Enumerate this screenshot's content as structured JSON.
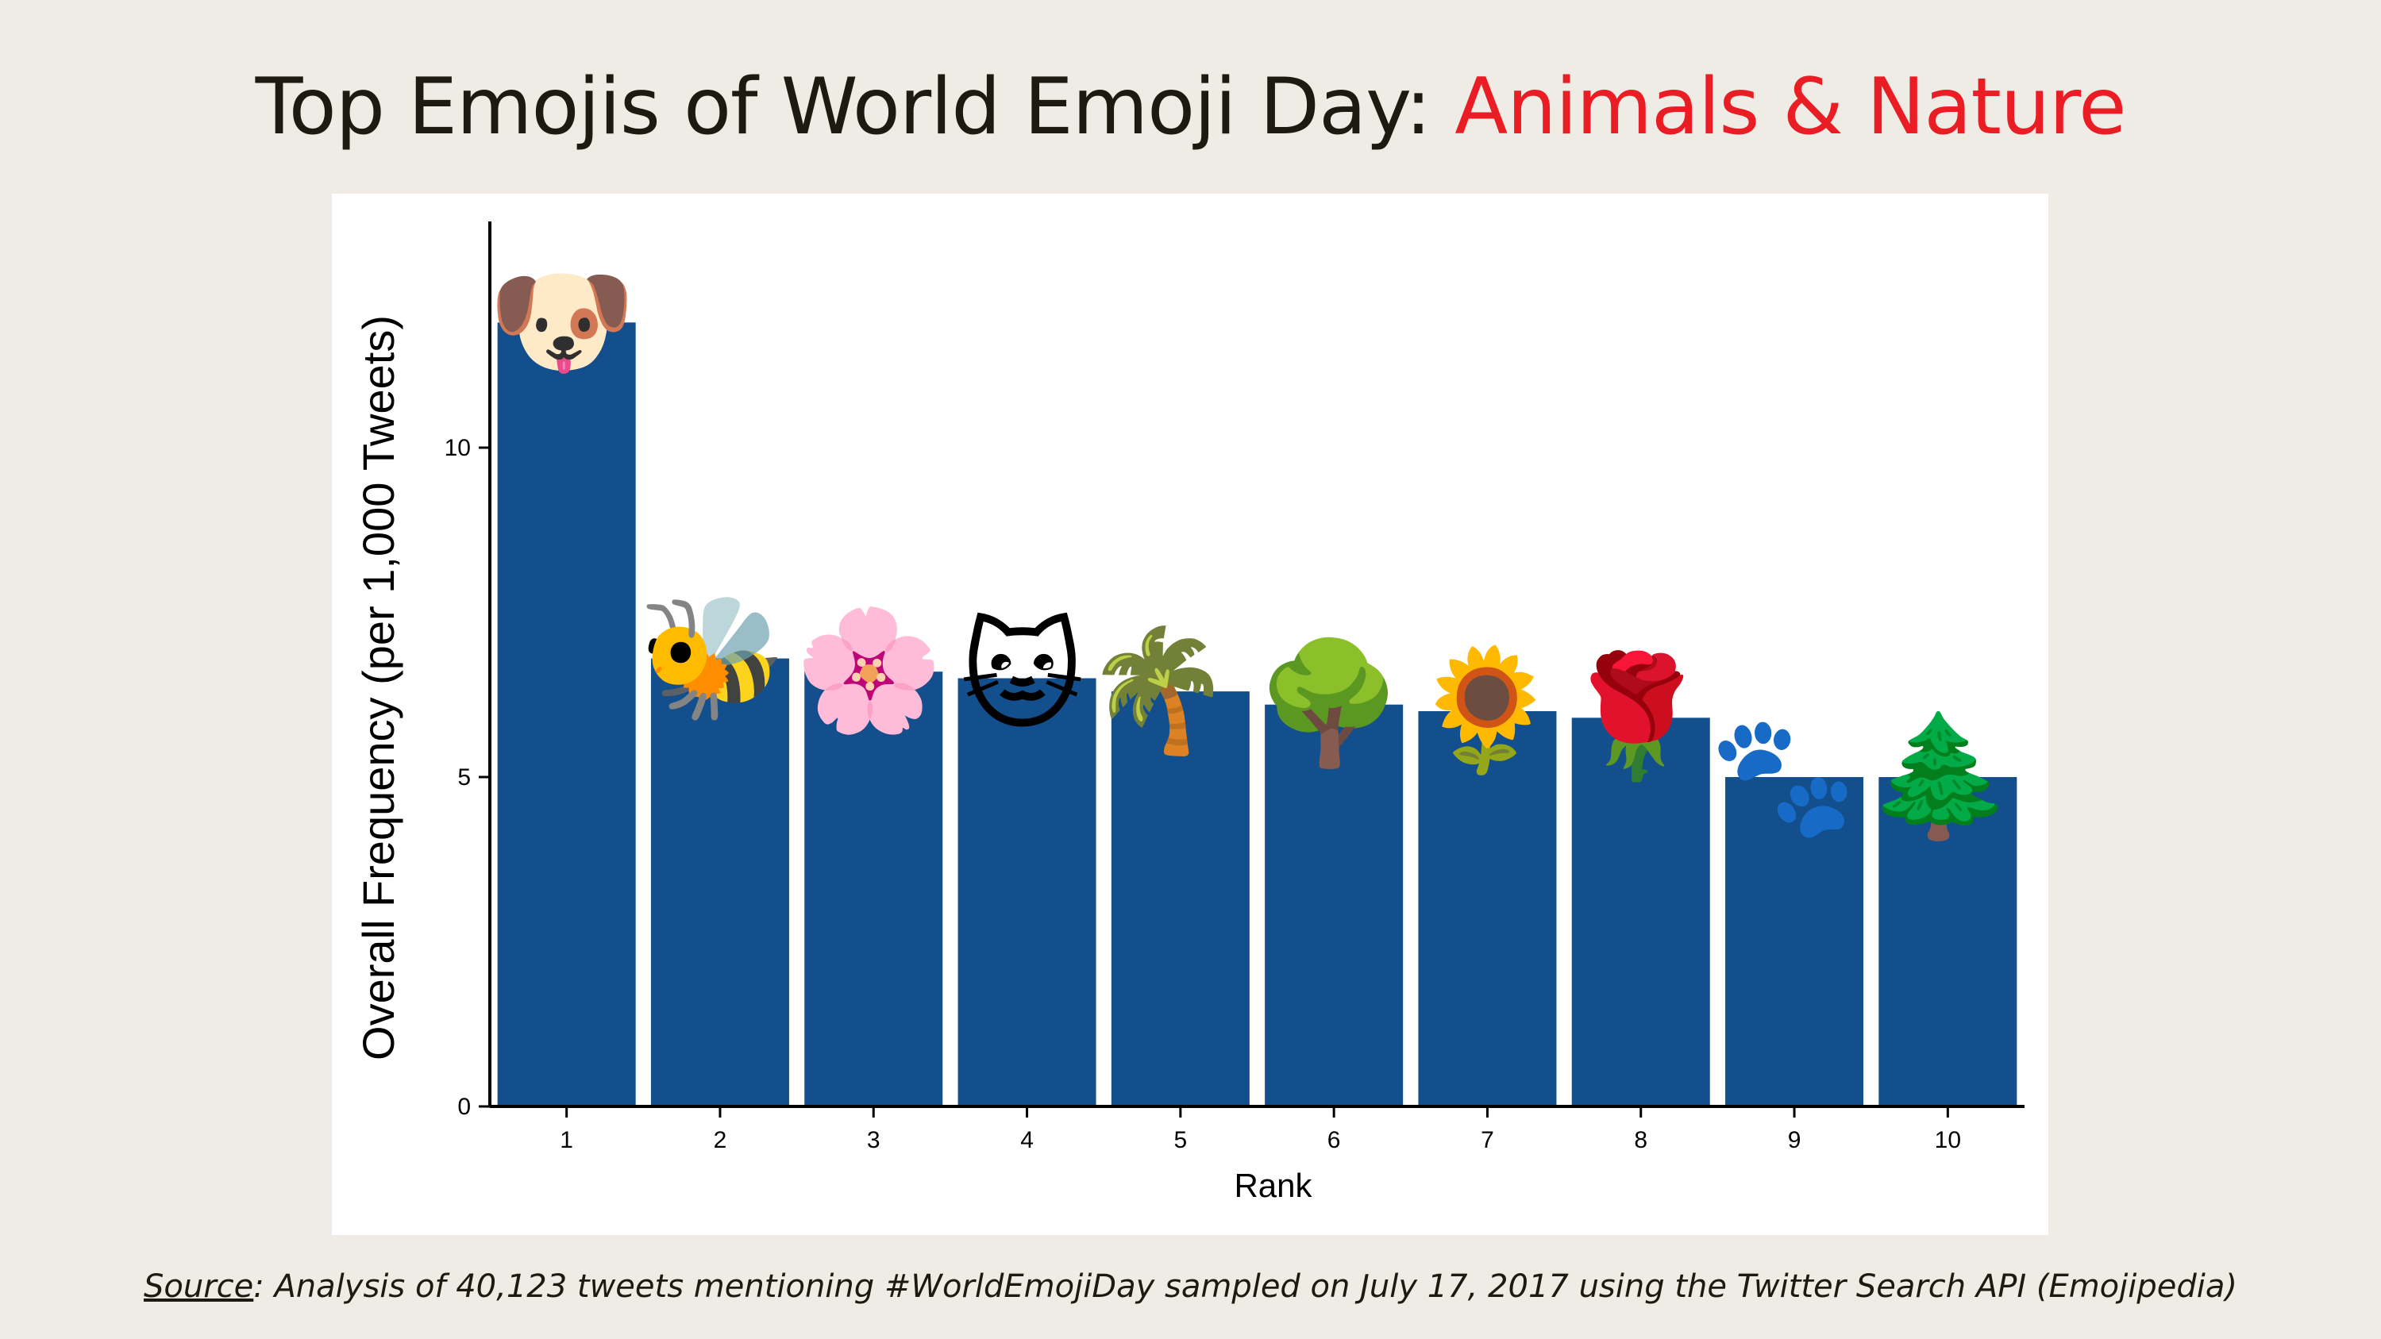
{
  "title": {
    "main": "Top Emojis of World Emoji Day: ",
    "accent": "Animals & Nature",
    "accent_color": "#ea1c24"
  },
  "chart_data": {
    "type": "bar",
    "title": "Top Emojis of World Emoji Day: Animals & Nature",
    "xlabel": "Rank",
    "ylabel": "Overall Frequency (per 1,000 Tweets)",
    "categories": [
      "1",
      "2",
      "3",
      "4",
      "5",
      "6",
      "7",
      "8",
      "9",
      "10"
    ],
    "values": [
      11.9,
      6.8,
      6.6,
      6.5,
      6.3,
      6.1,
      6.0,
      5.9,
      5.0,
      5.0
    ],
    "emojis": [
      "🐶",
      "🐝",
      "🌸",
      "🐱",
      "🌴",
      "🌳",
      "🌻",
      "🌹",
      "🐾",
      "🌲"
    ],
    "emoji_names": [
      "dog-face",
      "honeybee",
      "cherry-blossom",
      "cat-face",
      "palm-tree",
      "deciduous-tree",
      "sunflower",
      "rose",
      "paw-prints",
      "evergreen-tree"
    ],
    "yticks": [
      "0",
      "5",
      "10"
    ],
    "ylim": [
      0,
      13.4
    ],
    "bar_color": "#134f8d",
    "grid": false
  },
  "source": {
    "label": "Source",
    "text": ": Analysis of 40,123 tweets mentioning #WorldEmojiDay sampled on July 17, 2017 using the Twitter Search API (Emojipedia)"
  }
}
